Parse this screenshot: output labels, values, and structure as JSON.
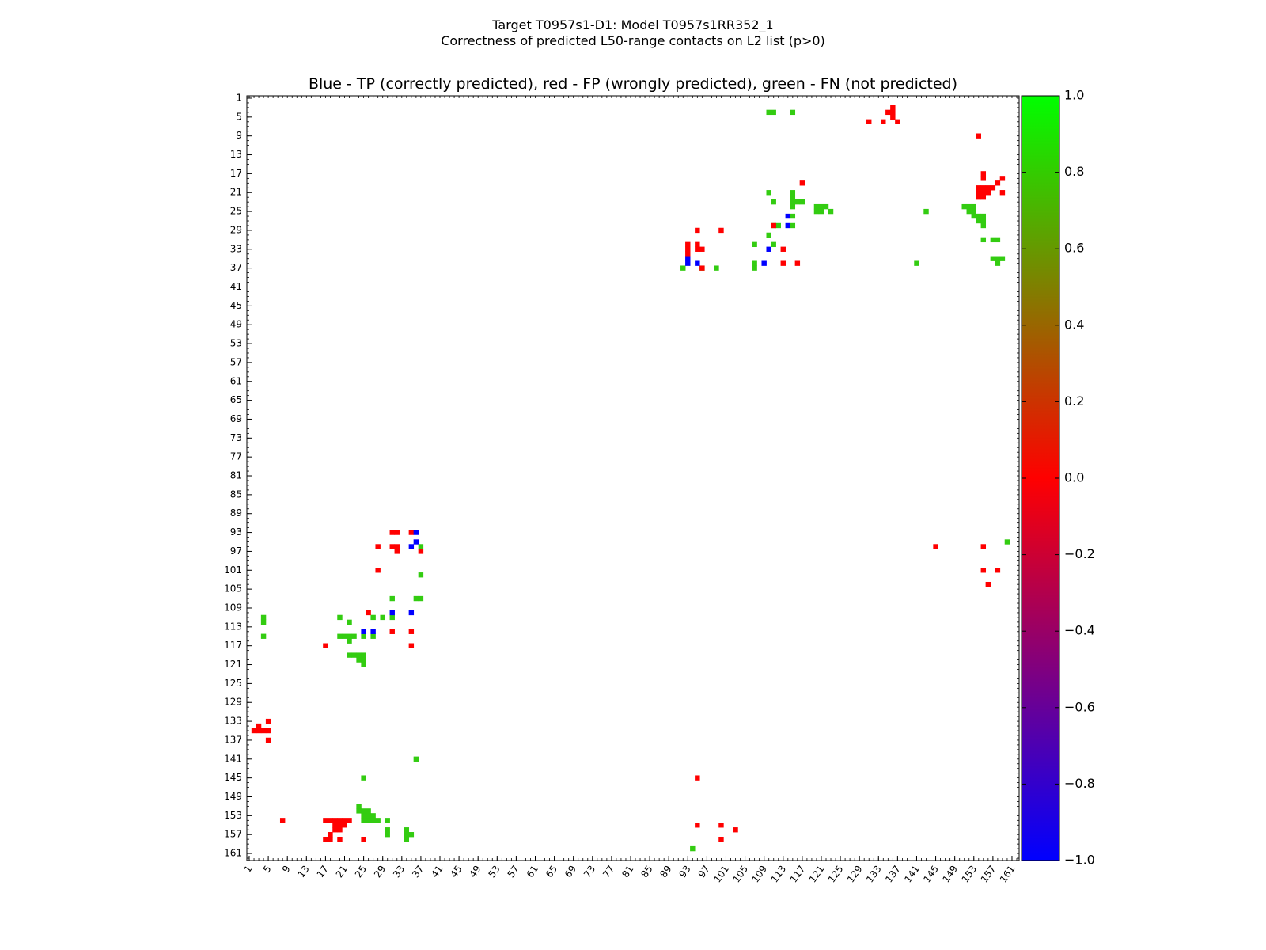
{
  "title": {
    "line1": "Target T0957s1-D1: Model T0957s1RR352_1",
    "line2": "Correctness of predicted L50-range contacts on L2 list (p>0)"
  },
  "chart_data": {
    "type": "heatmap",
    "plot_title": "Blue - TP (correctly predicted), red - FP (wrongly predicted), green - FN (not predicted)",
    "xlim": [
      1,
      162
    ],
    "ylim": [
      1,
      162
    ],
    "y_inverted": true,
    "tick_labels": [
      "1",
      "5",
      "9",
      "13",
      "17",
      "21",
      "25",
      "29",
      "33",
      "37",
      "41",
      "45",
      "49",
      "53",
      "57",
      "61",
      "65",
      "69",
      "73",
      "77",
      "81",
      "85",
      "89",
      "93",
      "97",
      "101",
      "105",
      "109",
      "113",
      "117",
      "121",
      "125",
      "129",
      "133",
      "137",
      "141",
      "145",
      "149",
      "153",
      "157",
      "161"
    ],
    "colorbar": {
      "range": [
        -1.0,
        1.0
      ],
      "ticks": [
        "1.0",
        "0.8",
        "0.6",
        "0.4",
        "0.2",
        "0.0",
        "−0.2",
        "−0.4",
        "−0.6",
        "−0.8",
        "−1.0"
      ],
      "colors": {
        "-1.0": "#0000ff",
        "0.0": "#ff0000",
        "1.0": "#00ff00"
      }
    },
    "legend": {
      "TP": "blue",
      "FP": "red",
      "FN": "green"
    },
    "colors": {
      "TP": "#0000ff",
      "FP": "#ff0000",
      "FN": "#33cc11"
    },
    "cells": {
      "TP": [
        [
          93,
          35
        ],
        [
          93,
          36
        ],
        [
          95,
          36
        ],
        [
          110,
          33
        ],
        [
          114,
          26
        ],
        [
          114,
          28
        ],
        [
          109,
          36
        ],
        [
          36,
          93
        ],
        [
          36,
          95
        ],
        [
          35,
          96
        ],
        [
          31,
          110
        ],
        [
          35,
          110
        ],
        [
          25,
          114
        ],
        [
          27,
          114
        ]
      ],
      "FP": [
        [
          136,
          3
        ],
        [
          136,
          4
        ],
        [
          135,
          4
        ],
        [
          136,
          5
        ],
        [
          131,
          6
        ],
        [
          134,
          6
        ],
        [
          137,
          6
        ],
        [
          154,
          9
        ],
        [
          155,
          17
        ],
        [
          155,
          18
        ],
        [
          159,
          18
        ],
        [
          158,
          19
        ],
        [
          117,
          19
        ],
        [
          154,
          20
        ],
        [
          155,
          20
        ],
        [
          156,
          20
        ],
        [
          157,
          20
        ],
        [
          154,
          21
        ],
        [
          155,
          21
        ],
        [
          156,
          21
        ],
        [
          159,
          21
        ],
        [
          154,
          22
        ],
        [
          155,
          22
        ],
        [
          95,
          29
        ],
        [
          100,
          29
        ],
        [
          111,
          28
        ],
        [
          93,
          32
        ],
        [
          93,
          33
        ],
        [
          95,
          32
        ],
        [
          95,
          33
        ],
        [
          96,
          33
        ],
        [
          93,
          34
        ],
        [
          113,
          33
        ],
        [
          113,
          36
        ],
        [
          116,
          36
        ],
        [
          96,
          37
        ],
        [
          31,
          93
        ],
        [
          32,
          93
        ],
        [
          35,
          93
        ],
        [
          31,
          96
        ],
        [
          32,
          96
        ],
        [
          32,
          97
        ],
        [
          28,
          96
        ],
        [
          37,
          97
        ],
        [
          28,
          101
        ],
        [
          26,
          110
        ],
        [
          31,
          114
        ],
        [
          35,
          114
        ],
        [
          35,
          117
        ],
        [
          17,
          117
        ],
        [
          5,
          133
        ],
        [
          3,
          134
        ],
        [
          5,
          135
        ],
        [
          2,
          135
        ],
        [
          3,
          135
        ],
        [
          4,
          135
        ],
        [
          5,
          137
        ],
        [
          145,
          96
        ],
        [
          155,
          96
        ],
        [
          155,
          101
        ],
        [
          158,
          101
        ],
        [
          156,
          104
        ],
        [
          8,
          154
        ],
        [
          17,
          154
        ],
        [
          18,
          154
        ],
        [
          19,
          154
        ],
        [
          20,
          154
        ],
        [
          21,
          154
        ],
        [
          22,
          154
        ],
        [
          19,
          155
        ],
        [
          20,
          155
        ],
        [
          21,
          155
        ],
        [
          19,
          156
        ],
        [
          20,
          156
        ],
        [
          18,
          157
        ],
        [
          17,
          158
        ],
        [
          18,
          158
        ],
        [
          20,
          158
        ],
        [
          25,
          158
        ],
        [
          95,
          145
        ],
        [
          95,
          155
        ],
        [
          100,
          155
        ],
        [
          103,
          156
        ],
        [
          100,
          158
        ]
      ],
      "FN": [
        [
          110,
          4
        ],
        [
          111,
          4
        ],
        [
          115,
          4
        ],
        [
          110,
          21
        ],
        [
          111,
          23
        ],
        [
          115,
          21
        ],
        [
          115,
          22
        ],
        [
          115,
          23
        ],
        [
          116,
          23
        ],
        [
          117,
          23
        ],
        [
          115,
          24
        ],
        [
          120,
          24
        ],
        [
          121,
          24
        ],
        [
          122,
          24
        ],
        [
          120,
          25
        ],
        [
          121,
          25
        ],
        [
          123,
          25
        ],
        [
          112,
          28
        ],
        [
          111,
          28
        ],
        [
          110,
          30
        ],
        [
          107,
          32
        ],
        [
          111,
          32
        ],
        [
          115,
          26
        ],
        [
          115,
          28
        ],
        [
          92,
          37
        ],
        [
          99,
          37
        ],
        [
          107,
          37
        ],
        [
          107,
          36
        ],
        [
          143,
          25
        ],
        [
          141,
          36
        ],
        [
          151,
          24
        ],
        [
          152,
          24
        ],
        [
          153,
          24
        ],
        [
          152,
          25
        ],
        [
          153,
          25
        ],
        [
          153,
          26
        ],
        [
          154,
          26
        ],
        [
          155,
          26
        ],
        [
          154,
          27
        ],
        [
          155,
          27
        ],
        [
          155,
          28
        ],
        [
          155,
          31
        ],
        [
          157,
          31
        ],
        [
          158,
          31
        ],
        [
          157,
          35
        ],
        [
          158,
          35
        ],
        [
          159,
          35
        ],
        [
          158,
          36
        ],
        [
          96,
          37
        ],
        [
          160,
          95
        ],
        [
          37,
          96
        ],
        [
          37,
          102
        ],
        [
          31,
          107
        ],
        [
          36,
          107
        ],
        [
          37,
          107
        ],
        [
          27,
          111
        ],
        [
          29,
          111
        ],
        [
          31,
          111
        ],
        [
          4,
          111
        ],
        [
          4,
          112
        ],
        [
          4,
          115
        ],
        [
          20,
          111
        ],
        [
          22,
          112
        ],
        [
          20,
          115
        ],
        [
          21,
          115
        ],
        [
          22,
          115
        ],
        [
          23,
          115
        ],
        [
          25,
          115
        ],
        [
          27,
          115
        ],
        [
          22,
          116
        ],
        [
          22,
          119
        ],
        [
          23,
          119
        ],
        [
          24,
          119
        ],
        [
          25,
          119
        ],
        [
          24,
          120
        ],
        [
          25,
          120
        ],
        [
          25,
          121
        ],
        [
          36,
          141
        ],
        [
          25,
          145
        ],
        [
          24,
          151
        ],
        [
          24,
          152
        ],
        [
          25,
          152
        ],
        [
          26,
          152
        ],
        [
          25,
          153
        ],
        [
          26,
          153
        ],
        [
          27,
          153
        ],
        [
          25,
          154
        ],
        [
          26,
          154
        ],
        [
          27,
          154
        ],
        [
          28,
          154
        ],
        [
          30,
          154
        ],
        [
          30,
          156
        ],
        [
          30,
          157
        ],
        [
          34,
          156
        ],
        [
          34,
          157
        ],
        [
          35,
          157
        ],
        [
          34,
          158
        ],
        [
          94,
          160
        ]
      ]
    }
  }
}
